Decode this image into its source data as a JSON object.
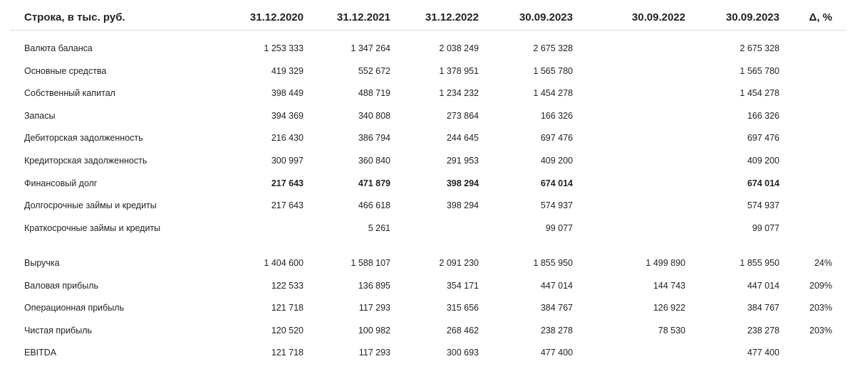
{
  "header": {
    "label": "Строка, в тыс. руб.",
    "columns": [
      "31.12.2020",
      "31.12.2021",
      "31.12.2022",
      "30.09.2023",
      "30.09.2022",
      "30.09.2023",
      "Δ, %"
    ]
  },
  "balance_rows": [
    {
      "label": "Валюта баланса",
      "values": [
        "1 253 333",
        "1 347 264",
        "2 038 249",
        "2 675 328",
        "",
        "2 675 328",
        ""
      ],
      "bold": false
    },
    {
      "label": "Основные средства",
      "values": [
        "419 329",
        "552 672",
        "1 378 951",
        "1 565 780",
        "",
        "1 565 780",
        ""
      ],
      "bold": false
    },
    {
      "label": "Собственный капитал",
      "values": [
        "398 449",
        "488 719",
        "1 234 232",
        "1 454 278",
        "",
        "1 454 278",
        ""
      ],
      "bold": false
    },
    {
      "label": "Запасы",
      "values": [
        "394 369",
        "340 808",
        "273 864",
        "166 326",
        "",
        "166 326",
        ""
      ],
      "bold": false
    },
    {
      "label": "Дебиторская задолженность",
      "values": [
        "216 430",
        "386 794",
        "244 645",
        "697 476",
        "",
        "697 476",
        ""
      ],
      "bold": false
    },
    {
      "label": "Кредиторская задолженность",
      "values": [
        "300 997",
        "360 840",
        "291 953",
        "409 200",
        "",
        "409 200",
        ""
      ],
      "bold": false
    },
    {
      "label": "Финансовый долг",
      "values": [
        "217 643",
        "471 879",
        "398 294",
        "674 014",
        "",
        "674 014",
        ""
      ],
      "bold": true
    },
    {
      "label": "Долгосрочные займы и кредиты",
      "values": [
        "217 643",
        "466 618",
        "398 294",
        "574 937",
        "",
        "574 937",
        ""
      ],
      "bold": false
    },
    {
      "label": "Краткосрочные займы и кредиты",
      "values": [
        "",
        "5 261",
        "",
        "99 077",
        "",
        "99 077",
        ""
      ],
      "bold": false
    }
  ],
  "income_rows": [
    {
      "label": "Выручка",
      "values": [
        "1 404 600",
        "1 588 107",
        "2 091 230",
        "1 855 950",
        "1 499 890",
        "1 855 950",
        "24%"
      ],
      "bold": false
    },
    {
      "label": "Валовая прибыль",
      "values": [
        "122 533",
        "136 895",
        "354 171",
        "447 014",
        "144 743",
        "447 014",
        "209%"
      ],
      "bold": false
    },
    {
      "label": "Операционная прибыль",
      "values": [
        "121 718",
        "117 293",
        "315 656",
        "384 767",
        "126 922",
        "384 767",
        "203%"
      ],
      "bold": false
    },
    {
      "label": "Чистая прибыль",
      "values": [
        "120 520",
        "100 982",
        "268 462",
        "238 278",
        "78 530",
        "238 278",
        "203%"
      ],
      "bold": false
    },
    {
      "label": "EBITDA",
      "values": [
        "121 718",
        "117 293",
        "300 693",
        "477 400",
        "",
        "477 400",
        ""
      ],
      "bold": false
    }
  ]
}
